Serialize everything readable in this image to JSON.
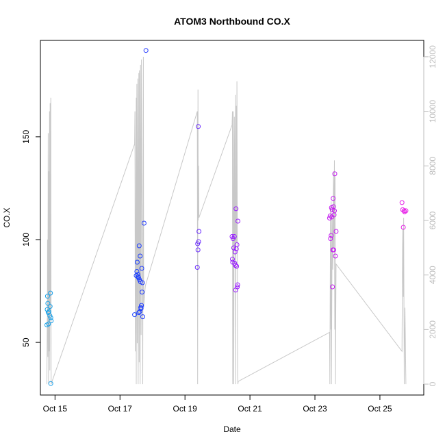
{
  "chart_data": {
    "type": "scatter",
    "title": "ATOM3 Northbound CO.X",
    "xlabel": "Date",
    "ylabel": "CO.X",
    "xlim": [
      14.55,
      26.35
    ],
    "ylim": [
      24.4,
      196.9
    ],
    "y2lim": [
      -400,
      12600
    ],
    "x_ticks": [
      {
        "x": 15,
        "label": "Oct 15"
      },
      {
        "x": 17,
        "label": "Oct 17"
      },
      {
        "x": 19,
        "label": "Oct 19"
      },
      {
        "x": 21,
        "label": "Oct 21"
      },
      {
        "x": 23,
        "label": "Oct 23"
      },
      {
        "x": 25,
        "label": "Oct 25"
      }
    ],
    "y_ticks": [
      {
        "y": 50,
        "label": "50"
      },
      {
        "y": 100,
        "label": "100"
      },
      {
        "y": 150,
        "label": "150"
      }
    ],
    "y2_ticks": [
      {
        "y": 0,
        "label": "0"
      },
      {
        "y": 2000,
        "label": "2000"
      },
      {
        "y": 4000,
        "label": "4000"
      },
      {
        "y": 6000,
        "label": "6000"
      },
      {
        "y": 8000,
        "label": "8000"
      },
      {
        "y": 10000,
        "label": "10000"
      },
      {
        "y": 12000,
        "label": "12000"
      }
    ],
    "grid": false,
    "colors": {
      "points_start": "#1aa6e8",
      "points_mid": "#1a3cff",
      "points_mid2": "#9b1aff",
      "points_end": "#e61ae6",
      "line": "#c8c8c8"
    },
    "points": [
      {
        "x": 14.75,
        "y": 58.5
      },
      {
        "x": 14.76,
        "y": 66
      },
      {
        "x": 14.77,
        "y": 72.5
      },
      {
        "x": 14.78,
        "y": 69
      },
      {
        "x": 14.79,
        "y": 64.5
      },
      {
        "x": 14.8,
        "y": 59
      },
      {
        "x": 14.81,
        "y": 65
      },
      {
        "x": 14.84,
        "y": 63
      },
      {
        "x": 14.85,
        "y": 67.5
      },
      {
        "x": 14.86,
        "y": 74
      },
      {
        "x": 14.87,
        "y": 62
      },
      {
        "x": 14.88,
        "y": 60.5
      },
      {
        "x": 14.87,
        "y": 30
      },
      {
        "x": 17.45,
        "y": 63.5
      },
      {
        "x": 17.5,
        "y": 82.5
      },
      {
        "x": 17.52,
        "y": 84.5
      },
      {
        "x": 17.53,
        "y": 89
      },
      {
        "x": 17.55,
        "y": 83
      },
      {
        "x": 17.56,
        "y": 82
      },
      {
        "x": 17.57,
        "y": 81.5
      },
      {
        "x": 17.58,
        "y": 64.5
      },
      {
        "x": 17.59,
        "y": 97
      },
      {
        "x": 17.6,
        "y": 80.5
      },
      {
        "x": 17.61,
        "y": 65
      },
      {
        "x": 17.62,
        "y": 92
      },
      {
        "x": 17.63,
        "y": 79.5
      },
      {
        "x": 17.64,
        "y": 67
      },
      {
        "x": 17.65,
        "y": 66.5
      },
      {
        "x": 17.66,
        "y": 68
      },
      {
        "x": 17.67,
        "y": 86
      },
      {
        "x": 17.68,
        "y": 74.5
      },
      {
        "x": 17.69,
        "y": 79
      },
      {
        "x": 17.7,
        "y": 62.5
      },
      {
        "x": 17.74,
        "y": 108
      },
      {
        "x": 17.8,
        "y": 192
      },
      {
        "x": 19.38,
        "y": 86.5
      },
      {
        "x": 19.39,
        "y": 98
      },
      {
        "x": 19.4,
        "y": 95
      },
      {
        "x": 19.41,
        "y": 155
      },
      {
        "x": 19.42,
        "y": 99
      },
      {
        "x": 19.43,
        "y": 104
      },
      {
        "x": 20.45,
        "y": 101.5
      },
      {
        "x": 20.46,
        "y": 90.5
      },
      {
        "x": 20.47,
        "y": 89
      },
      {
        "x": 20.48,
        "y": 100.5
      },
      {
        "x": 20.5,
        "y": 96
      },
      {
        "x": 20.52,
        "y": 101.5
      },
      {
        "x": 20.53,
        "y": 88.5
      },
      {
        "x": 20.54,
        "y": 94
      },
      {
        "x": 20.55,
        "y": 87.5
      },
      {
        "x": 20.56,
        "y": 75.5
      },
      {
        "x": 20.57,
        "y": 115
      },
      {
        "x": 20.58,
        "y": 95.5
      },
      {
        "x": 20.59,
        "y": 87
      },
      {
        "x": 20.6,
        "y": 97.5
      },
      {
        "x": 20.61,
        "y": 77
      },
      {
        "x": 20.62,
        "y": 78
      },
      {
        "x": 20.63,
        "y": 109
      },
      {
        "x": 23.45,
        "y": 110.5
      },
      {
        "x": 23.47,
        "y": 111.5
      },
      {
        "x": 23.48,
        "y": 100.5
      },
      {
        "x": 23.5,
        "y": 102
      },
      {
        "x": 23.51,
        "y": 115.5
      },
      {
        "x": 23.52,
        "y": 111
      },
      {
        "x": 23.53,
        "y": 114.5
      },
      {
        "x": 23.54,
        "y": 77
      },
      {
        "x": 23.55,
        "y": 95
      },
      {
        "x": 23.56,
        "y": 120
      },
      {
        "x": 23.57,
        "y": 116
      },
      {
        "x": 23.58,
        "y": 95
      },
      {
        "x": 23.59,
        "y": 112
      },
      {
        "x": 23.6,
        "y": 114
      },
      {
        "x": 23.61,
        "y": 132
      },
      {
        "x": 23.63,
        "y": 92
      },
      {
        "x": 23.65,
        "y": 104
      },
      {
        "x": 25.68,
        "y": 118
      },
      {
        "x": 25.7,
        "y": 114.5
      },
      {
        "x": 25.72,
        "y": 106
      },
      {
        "x": 25.74,
        "y": 114
      },
      {
        "x": 25.76,
        "y": 113.5
      },
      {
        "x": 25.8,
        "y": 114
      }
    ],
    "line": [
      [
        14.75,
        0
      ],
      [
        14.76,
        2400
      ],
      [
        14.765,
        1600
      ],
      [
        14.77,
        5300
      ],
      [
        14.78,
        1000
      ],
      [
        14.79,
        9200
      ],
      [
        14.8,
        0
      ],
      [
        14.81,
        7800
      ],
      [
        14.82,
        1200
      ],
      [
        14.83,
        10000
      ],
      [
        14.84,
        500
      ],
      [
        14.85,
        10300
      ],
      [
        14.86,
        2500
      ],
      [
        14.87,
        10500
      ],
      [
        14.88,
        0
      ],
      [
        17.45,
        8800
      ],
      [
        17.46,
        10000
      ],
      [
        17.47,
        1200
      ],
      [
        17.5,
        10500
      ],
      [
        17.5,
        0
      ],
      [
        17.52,
        11000
      ],
      [
        17.53,
        1500
      ],
      [
        17.55,
        11200
      ],
      [
        17.56,
        0
      ],
      [
        17.58,
        11400
      ],
      [
        17.59,
        800
      ],
      [
        17.6,
        11500
      ],
      [
        17.62,
        0
      ],
      [
        17.63,
        11700
      ],
      [
        17.65,
        1800
      ],
      [
        17.66,
        11900
      ],
      [
        17.7,
        0
      ],
      [
        17.72,
        12000
      ],
      [
        17.73,
        2800
      ],
      [
        17.75,
        3200
      ],
      [
        17.78,
        3600
      ],
      [
        19.38,
        10000
      ],
      [
        19.39,
        0
      ],
      [
        19.4,
        10800
      ],
      [
        19.41,
        6000
      ],
      [
        19.42,
        8000
      ],
      [
        19.43,
        6100
      ],
      [
        20.45,
        9500
      ],
      [
        20.46,
        10000
      ],
      [
        20.47,
        0
      ],
      [
        20.49,
        10000
      ],
      [
        20.5,
        0
      ],
      [
        20.52,
        9800
      ],
      [
        20.53,
        5000
      ],
      [
        20.55,
        10600
      ],
      [
        20.56,
        0
      ],
      [
        20.58,
        10200
      ],
      [
        20.59,
        5200
      ],
      [
        20.6,
        11100
      ],
      [
        20.62,
        300
      ],
      [
        20.63,
        0
      ],
      [
        20.64,
        100
      ],
      [
        23.45,
        1900
      ],
      [
        23.46,
        0
      ],
      [
        23.48,
        6500
      ],
      [
        23.49,
        2000
      ],
      [
        23.5,
        6700
      ],
      [
        23.51,
        0
      ],
      [
        23.53,
        6200
      ],
      [
        23.55,
        4200
      ],
      [
        23.57,
        7800
      ],
      [
        23.58,
        5000
      ],
      [
        23.6,
        8200
      ],
      [
        23.61,
        2000
      ],
      [
        23.62,
        7600
      ],
      [
        23.63,
        0
      ],
      [
        23.65,
        4400
      ],
      [
        25.68,
        1200
      ],
      [
        25.7,
        5700
      ],
      [
        25.72,
        3200
      ],
      [
        25.73,
        6100
      ],
      [
        25.75,
        0
      ],
      [
        25.77,
        2800
      ],
      [
        25.8,
        0
      ]
    ]
  }
}
